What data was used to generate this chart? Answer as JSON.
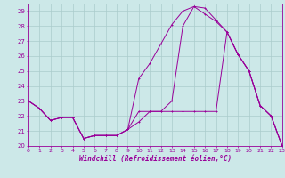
{
  "xlabel": "Windchill (Refroidissement éolien,°C)",
  "xlim": [
    0,
    23
  ],
  "ylim": [
    20,
    29.5
  ],
  "yticks": [
    20,
    21,
    22,
    23,
    24,
    25,
    26,
    27,
    28,
    29
  ],
  "xticks": [
    0,
    1,
    2,
    3,
    4,
    5,
    6,
    7,
    8,
    9,
    10,
    11,
    12,
    13,
    14,
    15,
    16,
    17,
    18,
    19,
    20,
    21,
    22,
    23
  ],
  "bg_color": "#cce8e8",
  "grid_color": "#aacccc",
  "line_color": "#990099",
  "line1_y": [
    23.0,
    22.5,
    21.7,
    21.9,
    21.9,
    20.5,
    20.7,
    20.7,
    20.7,
    21.1,
    21.6,
    22.3,
    22.3,
    23.0,
    28.0,
    29.3,
    29.2,
    28.4,
    27.6,
    26.1,
    25.0,
    22.7,
    22.0,
    20.0
  ],
  "line2_y": [
    23.0,
    22.5,
    21.7,
    21.9,
    21.9,
    20.5,
    20.7,
    20.7,
    20.7,
    21.1,
    24.5,
    25.5,
    26.8,
    28.1,
    29.0,
    29.3,
    28.8,
    28.3,
    27.6,
    26.1,
    25.0,
    22.7,
    22.0,
    20.0
  ],
  "line3_y": [
    23.0,
    22.5,
    21.7,
    21.9,
    21.9,
    20.5,
    20.7,
    20.7,
    20.7,
    21.1,
    22.3,
    22.3,
    22.3,
    22.3,
    22.3,
    22.3,
    22.3,
    22.3,
    27.6,
    26.1,
    25.0,
    22.7,
    22.0,
    20.0
  ]
}
